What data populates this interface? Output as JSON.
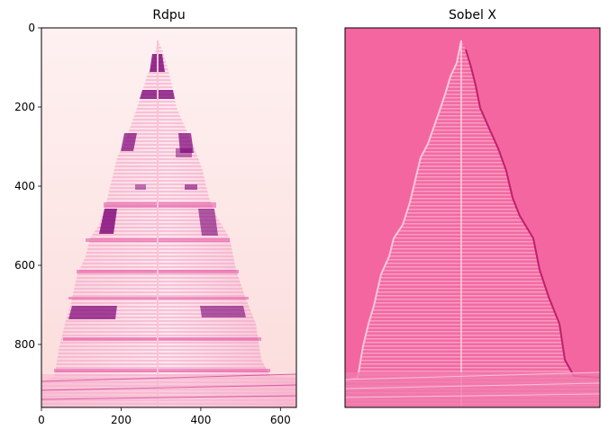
{
  "figure": {
    "panels": [
      {
        "title": "Rdpu",
        "colormap": "RdPu",
        "image_size": [
          640,
          960
        ],
        "show_axes": true,
        "xticks": [
          "0",
          "200",
          "400",
          "600"
        ],
        "yticks": [
          "0",
          "200",
          "400",
          "600",
          "800"
        ],
        "colors": {
          "background": "#fde8ea",
          "dark": "#7a0177",
          "mid": "#dd3497",
          "light": "#fcc5c0"
        }
      },
      {
        "title": "Sobel X",
        "colormap": "RdPu",
        "show_axes": false,
        "colors": {
          "background": "#f466a0",
          "edge_light": "#fbc0d6",
          "edge_dark": "#c0206e"
        }
      }
    ]
  }
}
